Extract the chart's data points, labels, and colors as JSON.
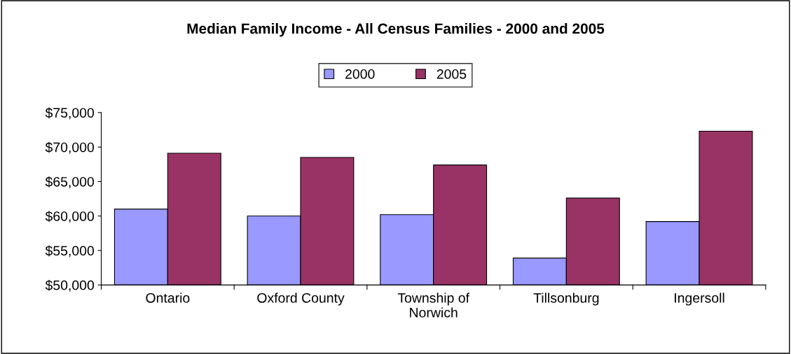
{
  "chart_data": {
    "type": "bar",
    "title": "Median Family Income - All Census Families - 2000 and 2005",
    "categories": [
      "Ontario",
      "Oxford County",
      "Township of\nNorwich",
      "Tillsonburg",
      "Ingersoll"
    ],
    "series": [
      {
        "name": "2000",
        "color": "#9999ff",
        "values": [
          61000,
          60000,
          60200,
          53900,
          59200
        ]
      },
      {
        "name": "2005",
        "color": "#993366",
        "values": [
          69100,
          68500,
          67400,
          62600,
          72300
        ]
      }
    ],
    "ylim": [
      50000,
      75000
    ],
    "yticks": [
      {
        "value": 50000,
        "label": "$50,000"
      },
      {
        "value": 55000,
        "label": "$55,000"
      },
      {
        "value": 60000,
        "label": "$60,000"
      },
      {
        "value": 65000,
        "label": "$65,000"
      },
      {
        "value": 70000,
        "label": "$70,000"
      },
      {
        "value": 75000,
        "label": "$75,000"
      }
    ],
    "grid": false,
    "legend": "top"
  }
}
